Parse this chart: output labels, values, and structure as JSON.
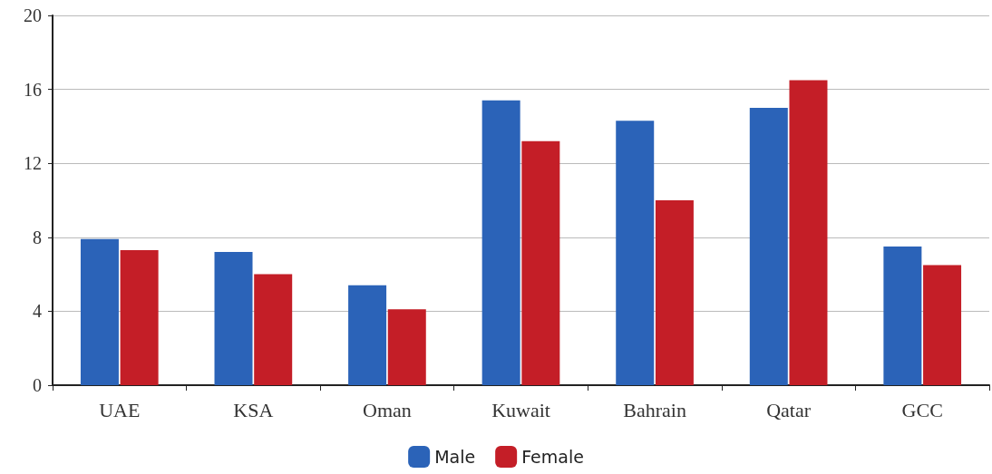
{
  "chart_data": {
    "type": "bar",
    "categories": [
      "UAE",
      "KSA",
      "Oman",
      "Kuwait",
      "Bahrain",
      "Qatar",
      "GCC"
    ],
    "series": [
      {
        "name": "Male",
        "color": "#2b63b8",
        "values": [
          7.9,
          7.2,
          5.4,
          15.4,
          14.3,
          15.0,
          7.5
        ]
      },
      {
        "name": "Female",
        "color": "#c41e27",
        "values": [
          7.3,
          6.0,
          4.1,
          13.2,
          10.0,
          16.5,
          6.5
        ]
      }
    ],
    "ylim": [
      0,
      20
    ],
    "yticks": [
      0,
      4,
      8,
      12,
      16,
      20
    ],
    "grid": "y",
    "legend": "bottom"
  }
}
